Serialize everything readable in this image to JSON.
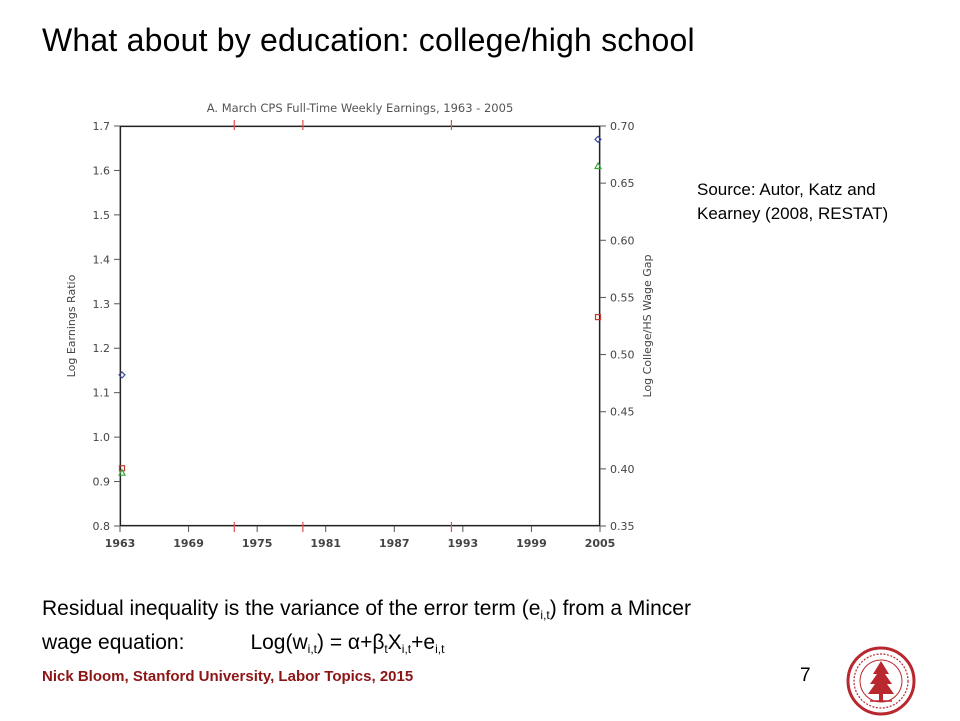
{
  "slide": {
    "title": "What about by education: college/high school",
    "source_note": {
      "line1": "Source: Autor, Katz and",
      "line2": "Kearney (2008, RESTAT)"
    },
    "body": {
      "line1": "Residual inequality is the variance of the error term (e",
      "line1_sub": "i,t",
      "line1_end": ") from a Mincer",
      "line2_start": "wage equation:",
      "eq": {
        "log": "Log(w",
        "sub1": "i,t",
        "mid": ") = α+β",
        "sub2": "t",
        "x": "X",
        "sub3": "i,t",
        "plus": "+e",
        "sub4": "i,t"
      }
    },
    "footer": "Nick Bloom, Stanford University, Labor Topics, 2015",
    "page_number": "7",
    "colors": {
      "footer": "#8c1515",
      "seal": "#b8282e",
      "chart_title": "#444444",
      "series_blue": "#3e4a9a",
      "series_red": "#c0392b",
      "series_green": "#3aa53a"
    }
  },
  "chart_data": {
    "type": "line",
    "title": "A. March CPS Full-Time Weekly Earnings, 1963 - 2005",
    "ylabel": "Log Earnings Ratio",
    "y2label": "Log College/HS Wage Gap",
    "xlim": [
      1963,
      2005
    ],
    "ylim": [
      0.8,
      1.7
    ],
    "y2lim": [
      0.35,
      0.7
    ],
    "x_ticks": [
      "1963",
      "1969",
      "1975",
      "1981",
      "1987",
      "1993",
      "1999",
      "2005"
    ],
    "y_ticks": [
      "0.8",
      "0.9",
      "1.0",
      "1.1",
      "1.2",
      "1.3",
      "1.4",
      "1.5",
      "1.6",
      "1.7"
    ],
    "y2_ticks": [
      "0.35",
      "0.40",
      "0.45",
      "0.50",
      "0.55",
      "0.60",
      "0.65",
      "0.70"
    ],
    "vertical_markers_x": [
      1973,
      1979,
      1992
    ],
    "grid": false,
    "series": [
      {
        "color": "#3e4a9a",
        "marker": "diamond",
        "points": [
          [
            1963,
            1.14
          ],
          [
            2005,
            1.67
          ]
        ]
      },
      {
        "color": "#c0392b",
        "marker": "square",
        "points": [
          [
            1963,
            0.93
          ],
          [
            2005,
            1.27
          ]
        ]
      },
      {
        "color": "#3aa53a",
        "marker": "triangle",
        "points": [
          [
            1963,
            0.92
          ],
          [
            2005,
            1.61
          ]
        ]
      }
    ]
  }
}
